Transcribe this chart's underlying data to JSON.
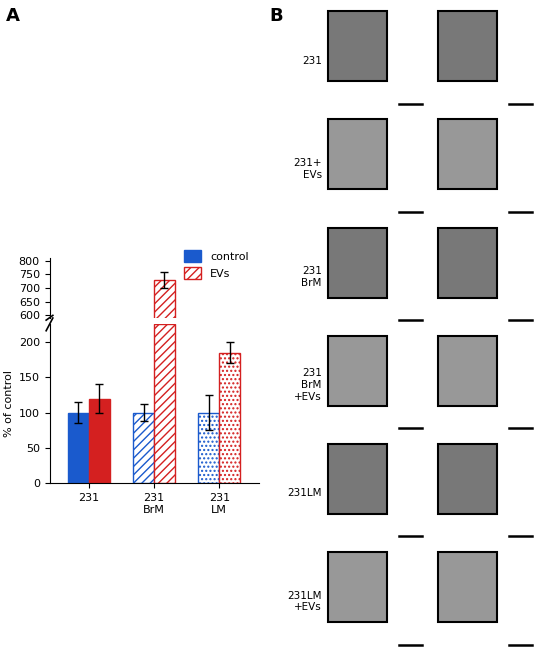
{
  "panel_A_label": "A",
  "panel_B_label": "B",
  "categories": [
    "231",
    "231\nBrM",
    "231\nLM"
  ],
  "control_values": [
    100,
    100,
    100
  ],
  "evs_values": [
    120,
    730,
    185
  ],
  "control_errors": [
    15,
    12,
    25
  ],
  "evs_errors": [
    20,
    30,
    15
  ],
  "control_color": "#1a5acd",
  "evs_color": "#d42020",
  "ylabel": "% of control",
  "yticks_bottom": [
    0,
    50,
    100,
    150,
    200
  ],
  "yticks_top": [
    600,
    650,
    700,
    750,
    800
  ],
  "legend_labels": [
    "control",
    "EVs"
  ],
  "row_labels": [
    "231",
    "231+\nEVs",
    "231\nBrM",
    "231\nBrM\n+EVs",
    "231LM",
    "231LM\n+EVs"
  ],
  "background_color": "#ffffff",
  "img_bg": "#b0b0b0",
  "inset_bg": "#787878",
  "inset_bg2": "#989898"
}
